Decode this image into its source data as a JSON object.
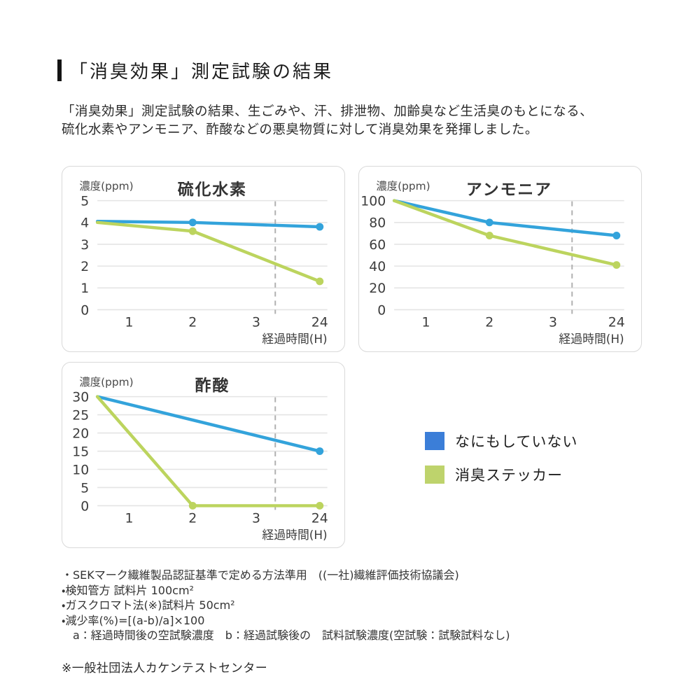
{
  "page": {
    "title": "「消臭効果」測定試験の結果",
    "intro_line1": "「消臭効果」測定試験の結果、生ごみや、汗、排泄物、加齢臭など生活臭のもとになる、",
    "intro_line2": "硫化水素やアンモニア、酢酸などの悪臭物質に対して消臭効果を発揮しました。"
  },
  "legend": {
    "items": [
      {
        "label": "なにもしていない",
        "color": "#3b7ed8"
      },
      {
        "label": "消臭ステッカー",
        "color": "#bed36c"
      }
    ]
  },
  "footnotes": {
    "lines": [
      "・SEKマーク繊維製品認証基準で定める方法準用　((一社)繊維評価技術協議会)",
      "・検知管方 試料片 100cm²",
      "・ガスクロマト法(※)試料片 50cm²",
      "・減少率(%)=[(a-b)/a]×100",
      "　a：経過時間後の空試験濃度　b：経過試験後の　試料試験濃度(空試験：試験試料なし)"
    ],
    "bottom_note": "※一般社団法人カケンテストセンター"
  },
  "style_colors": {
    "line_blue": "#33a3db",
    "line_green": "#bcd45e",
    "gridline": "#e4e4e4",
    "axis_break_dash": "#b0b0b0",
    "tick_text": "#3d3d3d"
  },
  "chart_data": [
    {
      "type": "line",
      "title": "硫化水素",
      "ylabel": "濃度(ppm)",
      "xlabel": "経過時間(H)",
      "ylim": [
        0,
        5
      ],
      "yticks": [
        0,
        1,
        2,
        3,
        4,
        5
      ],
      "xticks": [
        {
          "label": "1",
          "hours": 1,
          "slot": 1
        },
        {
          "label": "2",
          "hours": 2,
          "slot": 2
        },
        {
          "label": "3",
          "hours": 3,
          "slot": 3
        },
        {
          "label": "24",
          "hours": 24,
          "slot": 4
        }
      ],
      "axis_break_slot": 3.3,
      "grid": true,
      "series": [
        {
          "name": "なにもしていない",
          "color": "#33a3db",
          "points": [
            {
              "hours": 0,
              "slot": 0.5,
              "value": 4.05,
              "marker": false
            },
            {
              "hours": 2,
              "slot": 2,
              "value": 4.0,
              "marker": true
            },
            {
              "hours": 24,
              "slot": 4,
              "value": 3.8,
              "marker": true
            }
          ]
        },
        {
          "name": "消臭ステッカー",
          "color": "#bcd45e",
          "points": [
            {
              "hours": 0,
              "slot": 0.5,
              "value": 4.0,
              "marker": false
            },
            {
              "hours": 2,
              "slot": 2,
              "value": 3.6,
              "marker": true
            },
            {
              "hours": 24,
              "slot": 4,
              "value": 1.3,
              "marker": true
            }
          ]
        }
      ]
    },
    {
      "type": "line",
      "title": "アンモニア",
      "ylabel": "濃度(ppm)",
      "xlabel": "経過時間(H)",
      "ylim": [
        0,
        100
      ],
      "yticks": [
        0,
        20,
        40,
        60,
        80,
        100
      ],
      "xticks": [
        {
          "label": "1",
          "hours": 1,
          "slot": 1
        },
        {
          "label": "2",
          "hours": 2,
          "slot": 2
        },
        {
          "label": "3",
          "hours": 3,
          "slot": 3
        },
        {
          "label": "24",
          "hours": 24,
          "slot": 4
        }
      ],
      "axis_break_slot": 3.3,
      "grid": true,
      "series": [
        {
          "name": "なにもしていない",
          "color": "#33a3db",
          "points": [
            {
              "hours": 0,
              "slot": 0.5,
              "value": 100,
              "marker": false
            },
            {
              "hours": 2,
              "slot": 2,
              "value": 80,
              "marker": true
            },
            {
              "hours": 24,
              "slot": 4,
              "value": 68,
              "marker": true
            }
          ]
        },
        {
          "name": "消臭ステッカー",
          "color": "#bcd45e",
          "points": [
            {
              "hours": 0,
              "slot": 0.5,
              "value": 100,
              "marker": false
            },
            {
              "hours": 2,
              "slot": 2,
              "value": 68,
              "marker": true
            },
            {
              "hours": 24,
              "slot": 4,
              "value": 41,
              "marker": true
            }
          ]
        }
      ]
    },
    {
      "type": "line",
      "title": "酢酸",
      "ylabel": "濃度(ppm)",
      "xlabel": "経過時間(H)",
      "ylim": [
        0,
        30
      ],
      "yticks": [
        0,
        5,
        10,
        15,
        20,
        25,
        30
      ],
      "xticks": [
        {
          "label": "1",
          "hours": 1,
          "slot": 1
        },
        {
          "label": "2",
          "hours": 2,
          "slot": 2
        },
        {
          "label": "3",
          "hours": 3,
          "slot": 3
        },
        {
          "label": "24",
          "hours": 24,
          "slot": 4
        }
      ],
      "axis_break_slot": 3.3,
      "grid": true,
      "series": [
        {
          "name": "なにもしていない",
          "color": "#33a3db",
          "points": [
            {
              "hours": 0,
              "slot": 0.5,
              "value": 30,
              "marker": false
            },
            {
              "hours": 24,
              "slot": 4,
              "value": 15,
              "marker": true
            }
          ]
        },
        {
          "name": "消臭ステッカー",
          "color": "#bcd45e",
          "points": [
            {
              "hours": 0,
              "slot": 0.5,
              "value": 30,
              "marker": false
            },
            {
              "hours": 2,
              "slot": 2,
              "value": 0,
              "marker": true
            },
            {
              "hours": 24,
              "slot": 4,
              "value": 0,
              "marker": true
            }
          ]
        }
      ]
    }
  ]
}
